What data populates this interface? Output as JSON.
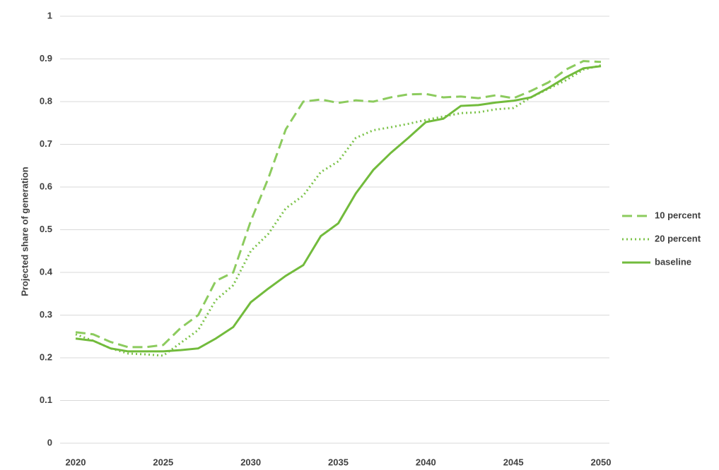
{
  "chart_data": {
    "type": "line",
    "y_label": "Projected share of generation",
    "x": [
      2020,
      2021,
      2022,
      2023,
      2024,
      2025,
      2026,
      2027,
      2028,
      2029,
      2030,
      2031,
      2032,
      2033,
      2034,
      2035,
      2036,
      2037,
      2038,
      2039,
      2040,
      2041,
      2042,
      2043,
      2044,
      2045,
      2046,
      2047,
      2048,
      2049,
      2050
    ],
    "series": [
      {
        "name": "10 percent",
        "color": "#8ccb5e",
        "dash": "dashed",
        "values": [
          0.26,
          0.255,
          0.237,
          0.225,
          0.225,
          0.23,
          0.27,
          0.3,
          0.38,
          0.4,
          0.52,
          0.62,
          0.735,
          0.8,
          0.805,
          0.797,
          0.803,
          0.8,
          0.81,
          0.817,
          0.818,
          0.81,
          0.812,
          0.808,
          0.815,
          0.808,
          0.825,
          0.845,
          0.875,
          0.895,
          0.893
        ]
      },
      {
        "name": "20 percent",
        "color": "#7cc34a",
        "dash": "dotted",
        "values": [
          0.255,
          0.24,
          0.222,
          0.21,
          0.208,
          0.205,
          0.235,
          0.265,
          0.335,
          0.37,
          0.45,
          0.49,
          0.55,
          0.58,
          0.635,
          0.66,
          0.715,
          0.733,
          0.74,
          0.748,
          0.757,
          0.765,
          0.773,
          0.775,
          0.782,
          0.785,
          0.81,
          0.83,
          0.85,
          0.875,
          0.885
        ]
      },
      {
        "name": "baseline",
        "color": "#72bb3c",
        "dash": "solid",
        "values": [
          0.245,
          0.24,
          0.222,
          0.215,
          0.215,
          0.215,
          0.218,
          0.222,
          0.245,
          0.272,
          0.33,
          0.362,
          0.392,
          0.417,
          0.485,
          0.515,
          0.585,
          0.64,
          0.68,
          0.715,
          0.752,
          0.76,
          0.79,
          0.792,
          0.798,
          0.802,
          0.81,
          0.832,
          0.857,
          0.878,
          0.883
        ]
      }
    ],
    "xlim": [
      2020,
      2050
    ],
    "xticks": [
      2020,
      2025,
      2030,
      2035,
      2040,
      2045,
      2050
    ],
    "ylim": [
      0,
      1
    ],
    "yticks": [
      0,
      0.1,
      0.2,
      0.3,
      0.4,
      0.5,
      0.6,
      0.7,
      0.8,
      0.9,
      1
    ],
    "grid": true,
    "legend": "right"
  }
}
